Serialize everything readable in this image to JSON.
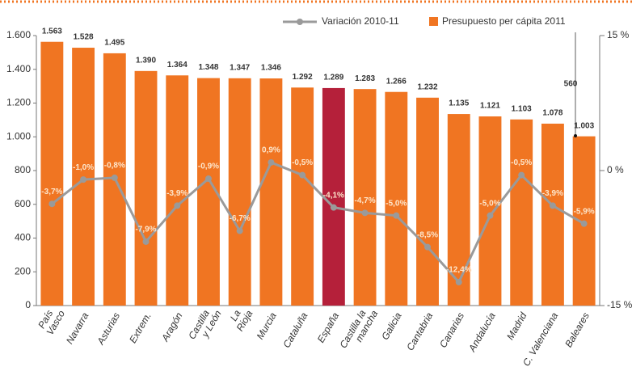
{
  "chart_data": {
    "type": "bar-line",
    "categories": [
      "País\nVasco",
      "Navarra",
      "Asturias",
      "Extrem.",
      "Aragón",
      "Castilla\ny León",
      "La\nRioja",
      "Murcia",
      "Cataluña",
      "España",
      "Castilla la\nmancha",
      "Galicia",
      "Cantabria",
      "Canarias",
      "Andalucía",
      "Madrid",
      "C. Valenciana",
      "Baleares"
    ],
    "series": [
      {
        "name": "Presupuesto per cápita 2011",
        "type": "bar",
        "color": "#f07522",
        "colors": [
          "#f07522",
          "#f07522",
          "#f07522",
          "#f07522",
          "#f07522",
          "#f07522",
          "#f07522",
          "#f07522",
          "#f07522",
          "#b5203a",
          "#f07522",
          "#f07522",
          "#f07522",
          "#f07522",
          "#f07522",
          "#f07522",
          "#f07522",
          "#f07522"
        ],
        "values": [
          1563,
          1528,
          1495,
          1390,
          1364,
          1348,
          1347,
          1346,
          1292,
          1289,
          1283,
          1266,
          1232,
          1135,
          1121,
          1103,
          1078,
          1003
        ],
        "value_labels": [
          "1.563",
          "1.528",
          "1.495",
          "1.390",
          "1.364",
          "1.348",
          "1.347",
          "1.346",
          "1.292",
          "1.289",
          "1.283",
          "1.266",
          "1.232",
          "1.135",
          "1.121",
          "1.103",
          "1.078",
          "1.003"
        ]
      },
      {
        "name": "Variación 2010-11",
        "type": "line",
        "axis": "y2",
        "color": "#9a9a9a",
        "values": [
          -3.7,
          -1.0,
          -0.8,
          -7.9,
          -3.9,
          -0.9,
          -6.7,
          0.9,
          -0.5,
          -4.1,
          -4.7,
          -5.0,
          -8.5,
          -12.4,
          -5.0,
          -0.5,
          -3.9,
          -5.9
        ],
        "value_labels": [
          "-3,7%",
          "-1,0%",
          "-0,8%",
          "-7,9%",
          "-3,9%",
          "-0,9%",
          "-6,7%",
          "0,9%",
          "-0,5%",
          "-4,1%",
          "-4,7%",
          "-5,0%",
          "-8,5%",
          "-12,4%",
          "-5,0%",
          "-0,5%",
          "-3,9%",
          "-5,9%"
        ]
      }
    ],
    "ylim": [
      0,
      1600
    ],
    "yticks": [
      0,
      200,
      400,
      600,
      800,
      {
        "value": 1000,
        "label": "1.000"
      },
      {
        "value": 1200,
        "label": "1.200"
      },
      {
        "value": 1400,
        "label": "1.400"
      },
      {
        "value": 1600,
        "label": "1.600"
      }
    ],
    "y2lim": [
      -15,
      15
    ],
    "y2ticks": [
      {
        "value": 15,
        "label": "15 %"
      },
      {
        "value": 0,
        "label": "0 %"
      },
      {
        "value": -15,
        "label": "-15 %"
      }
    ],
    "annotations": [
      "560"
    ],
    "legend": "top"
  }
}
